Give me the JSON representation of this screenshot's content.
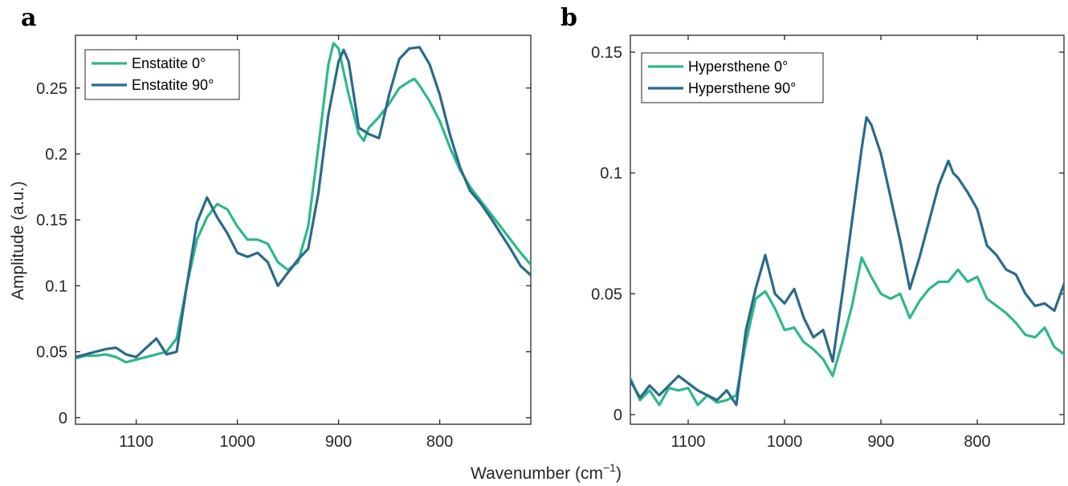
{
  "shared_xlabel_main": "Wavenumber (cm",
  "shared_xlabel_sup": "−1",
  "shared_xlabel_close": ")",
  "ylabel": "Amplitude (a.u.)",
  "colors": {
    "green": "#2fb88a",
    "blue": "#2a6a8c"
  },
  "chart_data": [
    {
      "type": "line",
      "panel": "a",
      "xlim": [
        1160,
        710
      ],
      "ylim": [
        -0.005,
        0.29
      ],
      "x_reversed": true,
      "xticks": [
        1100,
        1000,
        900,
        800
      ],
      "xtick_labels": [
        "1100",
        "1000",
        "900",
        "800"
      ],
      "yticks": [
        0,
        0.05,
        0.1,
        0.15,
        0.2,
        0.25
      ],
      "ytick_labels": [
        "0",
        "0.05",
        "0.1",
        "0.15",
        "0.2",
        "0.25"
      ],
      "legend_position": "top-left",
      "series": [
        {
          "name": "Enstatite 0°",
          "color": "#2fb88a",
          "x": [
            1160,
            1150,
            1140,
            1130,
            1120,
            1110,
            1100,
            1090,
            1080,
            1070,
            1060,
            1050,
            1040,
            1030,
            1020,
            1010,
            1000,
            990,
            980,
            970,
            960,
            950,
            940,
            930,
            920,
            910,
            905,
            900,
            890,
            880,
            875,
            870,
            860,
            850,
            840,
            830,
            825,
            820,
            810,
            800,
            790,
            780,
            770,
            760,
            750,
            740,
            730,
            720,
            710
          ],
          "y": [
            0.045,
            0.047,
            0.047,
            0.048,
            0.046,
            0.042,
            0.044,
            0.046,
            0.048,
            0.05,
            0.06,
            0.1,
            0.135,
            0.152,
            0.162,
            0.158,
            0.145,
            0.135,
            0.135,
            0.132,
            0.118,
            0.112,
            0.118,
            0.145,
            0.205,
            0.268,
            0.284,
            0.28,
            0.245,
            0.215,
            0.21,
            0.22,
            0.228,
            0.238,
            0.25,
            0.255,
            0.257,
            0.252,
            0.24,
            0.225,
            0.205,
            0.188,
            0.175,
            0.165,
            0.155,
            0.145,
            0.135,
            0.125,
            0.116
          ]
        },
        {
          "name": "Enstatite 90°",
          "color": "#2a6a8c",
          "x": [
            1160,
            1150,
            1140,
            1130,
            1120,
            1110,
            1100,
            1090,
            1080,
            1070,
            1060,
            1050,
            1040,
            1030,
            1020,
            1010,
            1000,
            990,
            980,
            970,
            960,
            950,
            940,
            930,
            920,
            910,
            900,
            895,
            890,
            880,
            870,
            860,
            850,
            840,
            830,
            820,
            810,
            800,
            790,
            780,
            770,
            760,
            750,
            740,
            730,
            720,
            710
          ],
          "y": [
            0.046,
            0.048,
            0.05,
            0.052,
            0.053,
            0.048,
            0.046,
            0.053,
            0.06,
            0.048,
            0.05,
            0.1,
            0.148,
            0.167,
            0.152,
            0.14,
            0.125,
            0.122,
            0.125,
            0.118,
            0.1,
            0.11,
            0.12,
            0.128,
            0.17,
            0.23,
            0.27,
            0.279,
            0.27,
            0.22,
            0.215,
            0.212,
            0.245,
            0.272,
            0.28,
            0.281,
            0.268,
            0.245,
            0.215,
            0.19,
            0.172,
            0.163,
            0.152,
            0.14,
            0.128,
            0.115,
            0.108
          ]
        }
      ]
    },
    {
      "type": "line",
      "panel": "b",
      "xlim": [
        1160,
        710
      ],
      "ylim": [
        -0.004,
        0.157
      ],
      "x_reversed": true,
      "xticks": [
        1100,
        1000,
        900,
        800
      ],
      "xtick_labels": [
        "1100",
        "1000",
        "900",
        "800"
      ],
      "yticks": [
        0,
        0.05,
        0.1,
        0.15
      ],
      "ytick_labels": [
        "0",
        "0.05",
        "0.1",
        "0.15"
      ],
      "legend_position": "top-left",
      "series": [
        {
          "name": "Hypersthene 0°",
          "color": "#2fb88a",
          "x": [
            1160,
            1150,
            1140,
            1130,
            1120,
            1110,
            1100,
            1090,
            1080,
            1070,
            1060,
            1050,
            1040,
            1030,
            1020,
            1010,
            1000,
            990,
            980,
            970,
            960,
            950,
            940,
            930,
            920,
            910,
            900,
            890,
            880,
            870,
            860,
            850,
            840,
            830,
            820,
            810,
            800,
            790,
            780,
            770,
            760,
            750,
            740,
            730,
            720,
            710
          ],
          "y": [
            0.015,
            0.006,
            0.01,
            0.004,
            0.011,
            0.01,
            0.011,
            0.004,
            0.008,
            0.005,
            0.006,
            0.008,
            0.03,
            0.048,
            0.051,
            0.044,
            0.035,
            0.036,
            0.03,
            0.027,
            0.023,
            0.016,
            0.03,
            0.045,
            0.065,
            0.057,
            0.05,
            0.048,
            0.05,
            0.04,
            0.047,
            0.052,
            0.055,
            0.055,
            0.06,
            0.055,
            0.057,
            0.048,
            0.045,
            0.042,
            0.038,
            0.033,
            0.032,
            0.036,
            0.028,
            0.025
          ]
        },
        {
          "name": "Hypersthene 90°",
          "color": "#2a6a8c",
          "x": [
            1160,
            1150,
            1140,
            1130,
            1120,
            1110,
            1100,
            1090,
            1080,
            1070,
            1060,
            1050,
            1045,
            1040,
            1030,
            1020,
            1010,
            1000,
            990,
            980,
            970,
            960,
            950,
            940,
            930,
            920,
            915,
            910,
            900,
            890,
            880,
            870,
            860,
            850,
            840,
            830,
            825,
            820,
            810,
            800,
            790,
            780,
            770,
            760,
            750,
            740,
            730,
            720,
            710
          ],
          "y": [
            0.014,
            0.007,
            0.012,
            0.008,
            0.012,
            0.016,
            0.013,
            0.01,
            0.008,
            0.006,
            0.01,
            0.004,
            0.02,
            0.035,
            0.052,
            0.066,
            0.05,
            0.046,
            0.052,
            0.04,
            0.032,
            0.035,
            0.022,
            0.05,
            0.08,
            0.11,
            0.123,
            0.12,
            0.108,
            0.09,
            0.072,
            0.052,
            0.065,
            0.08,
            0.095,
            0.105,
            0.1,
            0.098,
            0.092,
            0.085,
            0.07,
            0.066,
            0.06,
            0.058,
            0.05,
            0.045,
            0.046,
            0.043,
            0.054
          ]
        }
      ]
    }
  ]
}
